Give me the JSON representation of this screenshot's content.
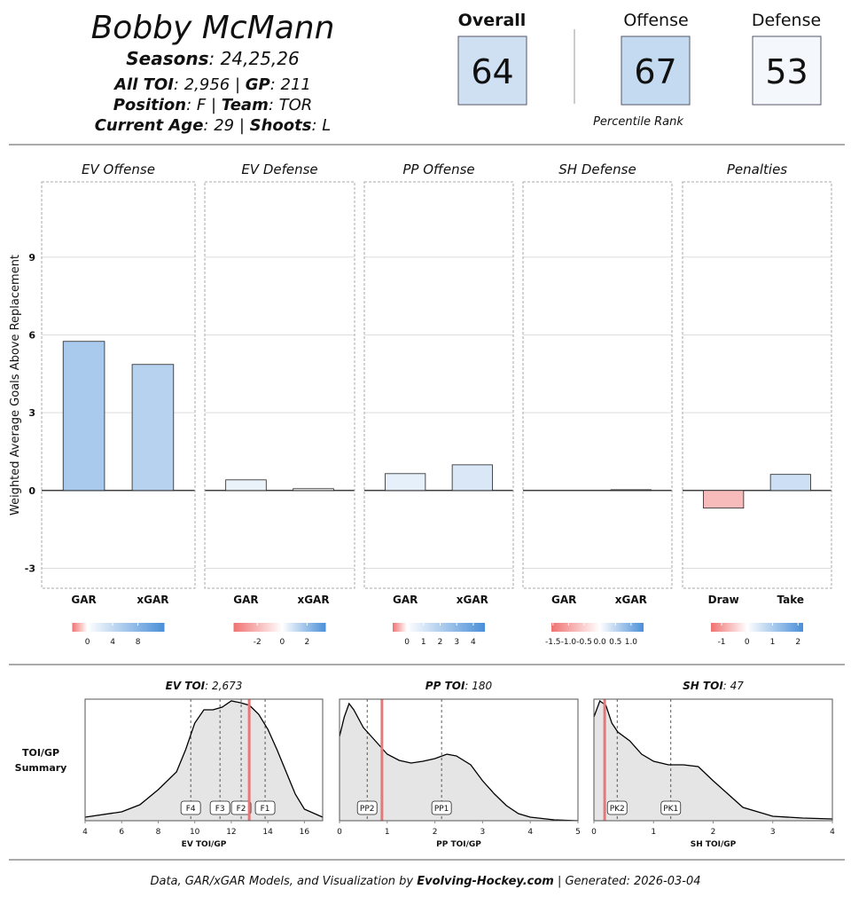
{
  "header": {
    "name": "Bobby McMann",
    "seasons_label": "Seasons",
    "seasons": "24,25,26",
    "toi_label": "All TOI",
    "toi": "2,956",
    "gp_label": "GP",
    "gp": 211,
    "position_label": "Position",
    "position": "F",
    "team_label": "Team",
    "team": "TOR",
    "age_label": "Current Age",
    "age": 29,
    "shoots_label": "Shoots",
    "shoots": "L"
  },
  "ratings": [
    {
      "name": "Overall",
      "value": 64,
      "color": "#cfe0f3"
    },
    {
      "name": "Offense",
      "value": 67,
      "color": "#c3daf0"
    },
    {
      "name": "Defense",
      "value": 53,
      "color": "#f4f8fc"
    }
  ],
  "ratings_note": "Percentile Rank",
  "summary_label": "TOI/GP Summary",
  "chart_data": [
    {
      "type": "bar",
      "ylabel": "Weighted Average Goals Above Replacement",
      "ylim": [
        -3.77,
        11.9
      ],
      "yticks": [
        -3,
        0,
        3,
        6,
        9
      ],
      "grid": true,
      "scale_colors": [
        "#f07272",
        "#ffffff",
        "#4a8fd8"
      ],
      "facets": [
        {
          "title": "EV Offense",
          "categories": [
            "GAR",
            "xGAR"
          ],
          "values": [
            5.75,
            4.86
          ],
          "scale_lim": [
            -2.4,
            12.2
          ],
          "scale_ticks": [
            0,
            4,
            8
          ]
        },
        {
          "title": "EV Defense",
          "categories": [
            "GAR",
            "xGAR"
          ],
          "values": [
            0.41,
            0.07
          ],
          "scale_lim": [
            -3.9,
            3.5
          ],
          "scale_ticks": [
            -2,
            0,
            2
          ]
        },
        {
          "title": "PP Offense",
          "categories": [
            "GAR",
            "xGAR"
          ],
          "values": [
            0.65,
            0.99
          ],
          "scale_lim": [
            -0.86,
            4.7
          ],
          "scale_ticks": [
            0,
            1,
            2,
            3,
            4
          ]
        },
        {
          "title": "SH Defense",
          "categories": [
            "GAR",
            "xGAR"
          ],
          "values": [
            0,
            0.03
          ],
          "scale_lim": [
            -1.55,
            1.4
          ],
          "scale_ticks": [
            {
              "value": -1.5,
              "label": "-1.5"
            },
            {
              "value": -1,
              "label": "-1.0"
            },
            {
              "value": -0.5,
              "label": "-0.5"
            },
            {
              "value": 0,
              "label": "0.0"
            },
            {
              "value": 0.5,
              "label": "0.5"
            },
            {
              "value": 1,
              "label": "1.0"
            }
          ]
        },
        {
          "title": "Penalties",
          "categories": [
            "Draw",
            "Take"
          ],
          "values": [
            -0.68,
            0.62
          ],
          "scale_lim": [
            -1.42,
            2.2
          ],
          "scale_ticks": [
            -1,
            0,
            1,
            2
          ]
        }
      ]
    },
    {
      "type": "density",
      "title": "EV TOI",
      "total": "2,673",
      "xlabel": "EV TOI/GP",
      "xlim": [
        4,
        17
      ],
      "xticks": [
        4,
        6,
        8,
        10,
        12,
        14,
        16
      ],
      "ylim": [
        0,
        1.37
      ],
      "x": [
        4,
        6,
        7,
        8,
        9,
        9.5,
        10,
        10.5,
        11,
        11.5,
        12,
        12.5,
        13,
        13.5,
        14,
        14.5,
        15,
        15.5,
        16,
        17
      ],
      "values": [
        0.04,
        0.1,
        0.18,
        0.35,
        0.55,
        0.8,
        1.1,
        1.25,
        1.25,
        1.28,
        1.35,
        1.33,
        1.3,
        1.2,
        1.03,
        0.8,
        0.55,
        0.3,
        0.13,
        0.04
      ],
      "player_value": 12.98,
      "ref_lines": [
        {
          "label": "F4",
          "value": 9.78
        },
        {
          "label": "F3",
          "value": 11.38
        },
        {
          "label": "F2",
          "value": 12.54
        },
        {
          "label": "F1",
          "value": 13.85
        }
      ]
    },
    {
      "type": "density",
      "title": "PP TOI",
      "total": "180",
      "xlabel": "PP TOI/GP",
      "xlim": [
        0,
        5
      ],
      "xticks": [
        0,
        1,
        2,
        3,
        4,
        5
      ],
      "ylim": [
        0,
        1.37
      ],
      "x": [
        0,
        0.1,
        0.2,
        0.3,
        0.5,
        0.75,
        1,
        1.25,
        1.5,
        1.75,
        2,
        2.25,
        2.45,
        2.75,
        3,
        3.25,
        3.5,
        3.75,
        4,
        4.5,
        5
      ],
      "values": [
        0.95,
        1.17,
        1.32,
        1.25,
        1.05,
        0.9,
        0.75,
        0.68,
        0.65,
        0.67,
        0.7,
        0.75,
        0.73,
        0.63,
        0.45,
        0.3,
        0.17,
        0.08,
        0.04,
        0.01,
        0
      ],
      "player_value": 0.89,
      "ref_lines": [
        {
          "label": "PP2",
          "value": 0.58
        },
        {
          "label": "PP1",
          "value": 2.14
        }
      ]
    },
    {
      "type": "density",
      "title": "SH TOI",
      "total": "47",
      "xlabel": "SH TOI/GP",
      "xlim": [
        0,
        4
      ],
      "xticks": [
        0,
        1,
        2,
        3,
        4
      ],
      "ylim": [
        0,
        1.37
      ],
      "x": [
        0,
        0.1,
        0.2,
        0.3,
        0.4,
        0.6,
        0.8,
        1,
        1.25,
        1.5,
        1.75,
        2,
        2.25,
        2.5,
        3,
        3.5,
        4
      ],
      "values": [
        1.17,
        1.35,
        1.3,
        1.1,
        1.0,
        0.9,
        0.75,
        0.67,
        0.63,
        0.63,
        0.61,
        0.45,
        0.3,
        0.15,
        0.05,
        0.03,
        0.02
      ],
      "player_value": 0.18,
      "ref_lines": [
        {
          "label": "PK2",
          "value": 0.39
        },
        {
          "label": "PK1",
          "value": 1.29
        }
      ]
    }
  ],
  "footer": {
    "credit": "Data, GAR/xGAR Models, and Visualization by",
    "site": "Evolving-Hockey.com",
    "generated_label": "Generated",
    "generated": "2026-03-04"
  }
}
